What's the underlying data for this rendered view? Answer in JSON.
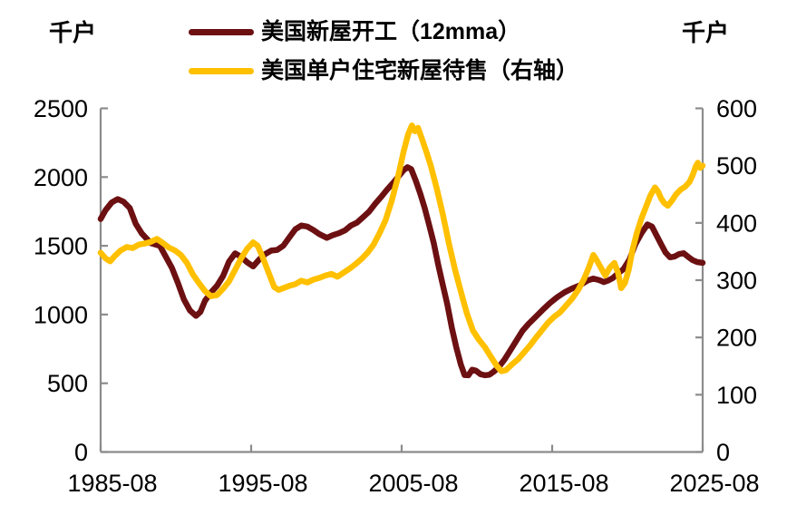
{
  "header": {
    "left_axis_unit": "千户",
    "right_axis_unit": "千户"
  },
  "legend": {
    "items": [
      {
        "label": "美国新屋开工（12mma）",
        "color": "#6c1012",
        "series_key": "housing-starts"
      },
      {
        "label": "美国单户住宅新屋待售（右轴）",
        "color": "#ffc000",
        "series_key": "homes-for-sale"
      }
    ]
  },
  "chart_data": {
    "type": "line",
    "grid": false,
    "axis_color": "#8c8c8c",
    "x_axis": {
      "tick_labels": [
        "1985-08",
        "1995-08",
        "2005-08",
        "2015-08",
        "2025-08"
      ],
      "tick_years": [
        1985.667,
        1995.667,
        2005.667,
        2015.667,
        2025.667
      ],
      "range_years": [
        1985.667,
        2025.667
      ]
    },
    "y_axis_left": {
      "unit": "千户",
      "ticks": [
        0,
        500,
        1000,
        1500,
        2000,
        2500
      ],
      "range": [
        0,
        2500
      ]
    },
    "y_axis_right": {
      "unit": "千户",
      "ticks": [
        0,
        100,
        200,
        300,
        400,
        500,
        600
      ],
      "range": [
        0,
        600
      ]
    },
    "series": [
      {
        "name": "美国新屋开工（12mma）",
        "key": "housing-starts",
        "axis": "left",
        "color": "#6c1012",
        "points": [
          [
            1985.67,
            1695
          ],
          [
            1986,
            1760
          ],
          [
            1986.4,
            1815
          ],
          [
            1986.8,
            1840
          ],
          [
            1987.2,
            1820
          ],
          [
            1987.6,
            1775
          ],
          [
            1988,
            1660
          ],
          [
            1988.4,
            1590
          ],
          [
            1989,
            1520
          ],
          [
            1989.6,
            1500
          ],
          [
            1990,
            1420
          ],
          [
            1990.4,
            1340
          ],
          [
            1990.8,
            1230
          ],
          [
            1991.2,
            1110
          ],
          [
            1991.6,
            1030
          ],
          [
            1992,
            990
          ],
          [
            1992.3,
            1020
          ],
          [
            1992.6,
            1100
          ],
          [
            1993,
            1160
          ],
          [
            1993.4,
            1210
          ],
          [
            1993.8,
            1280
          ],
          [
            1994.2,
            1385
          ],
          [
            1994.6,
            1445
          ],
          [
            1995,
            1420
          ],
          [
            1995.4,
            1380
          ],
          [
            1995.8,
            1350
          ],
          [
            1996.2,
            1400
          ],
          [
            1996.6,
            1440
          ],
          [
            1997,
            1465
          ],
          [
            1997.4,
            1470
          ],
          [
            1997.8,
            1500
          ],
          [
            1998.2,
            1560
          ],
          [
            1998.6,
            1620
          ],
          [
            1999,
            1648
          ],
          [
            1999.4,
            1640
          ],
          [
            1999.8,
            1615
          ],
          [
            2000.2,
            1585
          ],
          [
            2000.7,
            1558
          ],
          [
            2001.1,
            1578
          ],
          [
            2001.5,
            1592
          ],
          [
            2001.9,
            1612
          ],
          [
            2002.3,
            1648
          ],
          [
            2002.7,
            1668
          ],
          [
            2003.1,
            1708
          ],
          [
            2003.5,
            1748
          ],
          [
            2003.9,
            1805
          ],
          [
            2004.3,
            1855
          ],
          [
            2004.7,
            1908
          ],
          [
            2005.1,
            1958
          ],
          [
            2005.5,
            2010
          ],
          [
            2005.8,
            2050
          ],
          [
            2006.05,
            2072
          ],
          [
            2006.3,
            2058
          ],
          [
            2006.6,
            1975
          ],
          [
            2006.9,
            1880
          ],
          [
            2007.2,
            1775
          ],
          [
            2007.5,
            1650
          ],
          [
            2007.8,
            1520
          ],
          [
            2008.1,
            1360
          ],
          [
            2008.4,
            1215
          ],
          [
            2008.7,
            1075
          ],
          [
            2009,
            905
          ],
          [
            2009.3,
            760
          ],
          [
            2009.6,
            635
          ],
          [
            2009.85,
            560
          ],
          [
            2010.1,
            558
          ],
          [
            2010.35,
            598
          ],
          [
            2010.6,
            592
          ],
          [
            2010.9,
            566
          ],
          [
            2011.2,
            558
          ],
          [
            2011.5,
            562
          ],
          [
            2011.8,
            586
          ],
          [
            2012.1,
            616
          ],
          [
            2012.5,
            672
          ],
          [
            2012.9,
            742
          ],
          [
            2013.3,
            812
          ],
          [
            2013.7,
            882
          ],
          [
            2014.1,
            932
          ],
          [
            2014.5,
            975
          ],
          [
            2015,
            1030
          ],
          [
            2015.5,
            1082
          ],
          [
            2016,
            1126
          ],
          [
            2016.5,
            1162
          ],
          [
            2017,
            1190
          ],
          [
            2017.5,
            1212
          ],
          [
            2018,
            1246
          ],
          [
            2018.4,
            1262
          ],
          [
            2018.8,
            1250
          ],
          [
            2019.1,
            1236
          ],
          [
            2019.4,
            1248
          ],
          [
            2019.7,
            1266
          ],
          [
            2020,
            1296
          ],
          [
            2020.4,
            1330
          ],
          [
            2020.8,
            1400
          ],
          [
            2021.2,
            1512
          ],
          [
            2021.6,
            1592
          ],
          [
            2022,
            1656
          ],
          [
            2022.3,
            1640
          ],
          [
            2022.6,
            1576
          ],
          [
            2022.9,
            1512
          ],
          [
            2023.2,
            1452
          ],
          [
            2023.5,
            1416
          ],
          [
            2023.8,
            1422
          ],
          [
            2024.1,
            1440
          ],
          [
            2024.4,
            1446
          ],
          [
            2024.7,
            1420
          ],
          [
            2025,
            1396
          ],
          [
            2025.3,
            1382
          ],
          [
            2025.67,
            1376
          ]
        ]
      },
      {
        "name": "美国单户住宅新屋待售（右轴）",
        "key": "homes-for-sale",
        "axis": "right",
        "color": "#ffc000",
        "points": [
          [
            1985.67,
            348
          ],
          [
            1986,
            338
          ],
          [
            1986.3,
            333
          ],
          [
            1986.6,
            342
          ],
          [
            1987,
            352
          ],
          [
            1987.4,
            358
          ],
          [
            1987.8,
            356
          ],
          [
            1988.2,
            362
          ],
          [
            1988.6,
            364
          ],
          [
            1989,
            367
          ],
          [
            1989.4,
            372
          ],
          [
            1989.8,
            365
          ],
          [
            1990.2,
            357
          ],
          [
            1990.6,
            352
          ],
          [
            1991,
            344
          ],
          [
            1991.4,
            330
          ],
          [
            1991.8,
            310
          ],
          [
            1992.2,
            295
          ],
          [
            1992.6,
            281
          ],
          [
            1993,
            272
          ],
          [
            1993.4,
            274
          ],
          [
            1993.8,
            285
          ],
          [
            1994.2,
            298
          ],
          [
            1994.6,
            318
          ],
          [
            1995,
            338
          ],
          [
            1995.4,
            355
          ],
          [
            1995.8,
            366
          ],
          [
            1996.1,
            360
          ],
          [
            1996.4,
            342
          ],
          [
            1996.8,
            315
          ],
          [
            1997.2,
            288
          ],
          [
            1997.5,
            283
          ],
          [
            1997.8,
            286
          ],
          [
            1998.2,
            290
          ],
          [
            1998.6,
            293
          ],
          [
            1999,
            299
          ],
          [
            1999.4,
            296
          ],
          [
            1999.8,
            301
          ],
          [
            2000.2,
            304
          ],
          [
            2000.6,
            308
          ],
          [
            2001,
            311
          ],
          [
            2001.4,
            306
          ],
          [
            2001.8,
            313
          ],
          [
            2002.2,
            320
          ],
          [
            2002.6,
            328
          ],
          [
            2003,
            337
          ],
          [
            2003.4,
            348
          ],
          [
            2003.8,
            362
          ],
          [
            2004.2,
            382
          ],
          [
            2004.6,
            405
          ],
          [
            2005,
            438
          ],
          [
            2005.4,
            478
          ],
          [
            2005.8,
            525
          ],
          [
            2006.1,
            555
          ],
          [
            2006.35,
            570
          ],
          [
            2006.55,
            560
          ],
          [
            2006.75,
            566
          ],
          [
            2007,
            548
          ],
          [
            2007.3,
            525
          ],
          [
            2007.6,
            500
          ],
          [
            2008,
            460
          ],
          [
            2008.4,
            415
          ],
          [
            2008.8,
            365
          ],
          [
            2009.2,
            320
          ],
          [
            2009.6,
            280
          ],
          [
            2010,
            242
          ],
          [
            2010.4,
            212
          ],
          [
            2010.8,
            196
          ],
          [
            2011.2,
            183
          ],
          [
            2011.6,
            166
          ],
          [
            2012,
            150
          ],
          [
            2012.3,
            141
          ],
          [
            2012.6,
            143
          ],
          [
            2013,
            153
          ],
          [
            2013.4,
            162
          ],
          [
            2013.8,
            174
          ],
          [
            2014.2,
            186
          ],
          [
            2014.6,
            200
          ],
          [
            2015,
            213
          ],
          [
            2015.4,
            226
          ],
          [
            2015.8,
            236
          ],
          [
            2016.2,
            244
          ],
          [
            2016.6,
            256
          ],
          [
            2017,
            268
          ],
          [
            2017.4,
            283
          ],
          [
            2017.8,
            303
          ],
          [
            2018.1,
            322
          ],
          [
            2018.4,
            344
          ],
          [
            2018.6,
            336
          ],
          [
            2018.9,
            322
          ],
          [
            2019.2,
            308
          ],
          [
            2019.5,
            322
          ],
          [
            2019.8,
            330
          ],
          [
            2020.05,
            312
          ],
          [
            2020.25,
            286
          ],
          [
            2020.5,
            295
          ],
          [
            2020.75,
            318
          ],
          [
            2021,
            352
          ],
          [
            2021.3,
            383
          ],
          [
            2021.6,
            408
          ],
          [
            2021.9,
            428
          ],
          [
            2022.2,
            448
          ],
          [
            2022.5,
            462
          ],
          [
            2022.7,
            455
          ],
          [
            2022.9,
            443
          ],
          [
            2023.1,
            435
          ],
          [
            2023.35,
            430
          ],
          [
            2023.6,
            438
          ],
          [
            2023.9,
            450
          ],
          [
            2024.2,
            458
          ],
          [
            2024.5,
            463
          ],
          [
            2024.8,
            472
          ],
          [
            2025,
            483
          ],
          [
            2025.2,
            498
          ],
          [
            2025.35,
            505
          ],
          [
            2025.5,
            496
          ],
          [
            2025.67,
            500
          ]
        ]
      }
    ]
  }
}
